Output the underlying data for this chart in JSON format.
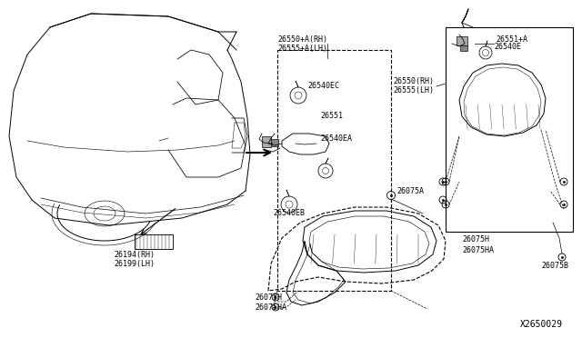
{
  "bg_color": "#ffffff",
  "diagram_id": "X2650029",
  "fig_w": 6.4,
  "fig_h": 3.72,
  "labels": {
    "top_left_1": "26550+A(RH)",
    "top_left_2": "26555+A(LH)",
    "ec": "26540EC",
    "551": "26551",
    "ea": "26540EA",
    "eb": "26540EB",
    "h_bot1": "26075H",
    "ha_bot1": "26075HA",
    "a_mid": "26075A",
    "h_mid": "26075H",
    "ha_mid": "26075HA",
    "b_right": "26075B",
    "rh_top": "26550(RH)",
    "lh_top": "26555(LH)",
    "551a": "26551+A",
    "e_right": "26540E",
    "car_rh": "26194(RH)",
    "car_lh": "26199(LH)"
  }
}
